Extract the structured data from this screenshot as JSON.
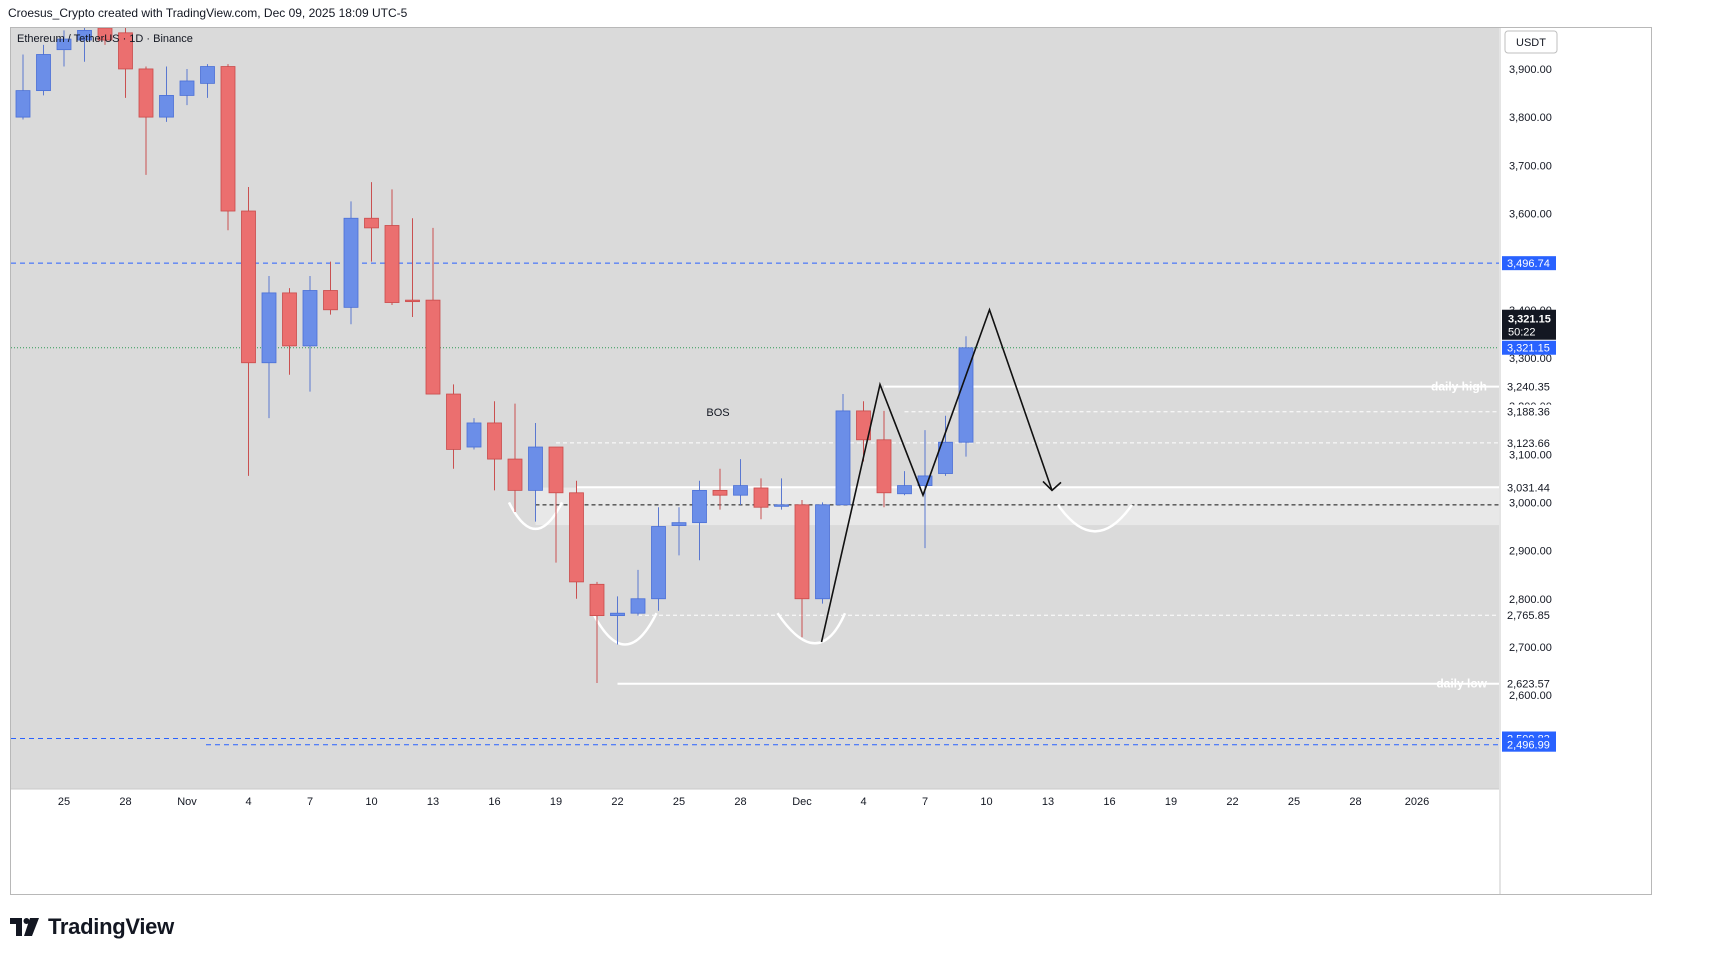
{
  "header": {
    "credit": "Croesus_Crypto created with TradingView.com, Dec 09, 2025 18:09 UTC-5"
  },
  "chart_data": {
    "type": "candlestick",
    "title": "Ethereum / TetherUS · 1D · Binance",
    "currency": "USDT",
    "ylim": [
      2405,
      3985
    ],
    "y_ticks": [
      2600,
      2700,
      2800,
      2900,
      3000,
      3100,
      3200,
      3300,
      3400,
      3600,
      3700,
      3800,
      3900
    ],
    "x_ticks": [
      "25",
      "28",
      "Nov",
      "4",
      "7",
      "10",
      "13",
      "16",
      "19",
      "22",
      "25",
      "28",
      "Dec",
      "4",
      "7",
      "10",
      "13",
      "16",
      "19",
      "22",
      "25",
      "28",
      "2026"
    ],
    "candles": [
      {
        "o": 3800,
        "h": 3930,
        "l": 3795,
        "c": 3855
      },
      {
        "o": 3855,
        "h": 3950,
        "l": 3845,
        "c": 3930
      },
      {
        "o": 3940,
        "h": 3980,
        "l": 3905,
        "c": 3962
      },
      {
        "o": 3960,
        "h": 3990,
        "l": 3915,
        "c": 3980
      },
      {
        "o": 3985,
        "h": 3990,
        "l": 3950,
        "c": 3960
      },
      {
        "o": 3975,
        "h": 3990,
        "l": 3840,
        "c": 3900
      },
      {
        "o": 3900,
        "h": 3905,
        "l": 3680,
        "c": 3800
      },
      {
        "o": 3800,
        "h": 3905,
        "l": 3790,
        "c": 3845
      },
      {
        "o": 3845,
        "h": 3900,
        "l": 3825,
        "c": 3875
      },
      {
        "o": 3870,
        "h": 3910,
        "l": 3840,
        "c": 3905
      },
      {
        "o": 3905,
        "h": 3910,
        "l": 3565,
        "c": 3605
      },
      {
        "o": 3605,
        "h": 3655,
        "l": 3055,
        "c": 3290
      },
      {
        "o": 3290,
        "h": 3470,
        "l": 3175,
        "c": 3435
      },
      {
        "o": 3435,
        "h": 3445,
        "l": 3265,
        "c": 3325
      },
      {
        "o": 3325,
        "h": 3470,
        "l": 3230,
        "c": 3440
      },
      {
        "o": 3440,
        "h": 3500,
        "l": 3390,
        "c": 3400
      },
      {
        "o": 3405,
        "h": 3625,
        "l": 3370,
        "c": 3590
      },
      {
        "o": 3590,
        "h": 3665,
        "l": 3500,
        "c": 3570
      },
      {
        "o": 3575,
        "h": 3650,
        "l": 3410,
        "c": 3415
      },
      {
        "o": 3420,
        "h": 3590,
        "l": 3385,
        "c": 3418
      },
      {
        "o": 3420,
        "h": 3570,
        "l": 3230,
        "c": 3225
      },
      {
        "o": 3225,
        "h": 3245,
        "l": 3070,
        "c": 3110
      },
      {
        "o": 3115,
        "h": 3175,
        "l": 3110,
        "c": 3165
      },
      {
        "o": 3165,
        "h": 3210,
        "l": 3025,
        "c": 3090
      },
      {
        "o": 3090,
        "h": 3205,
        "l": 2980,
        "c": 3025
      },
      {
        "o": 3025,
        "h": 3165,
        "l": 2960,
        "c": 3115
      },
      {
        "o": 3115,
        "h": 3115,
        "l": 2875,
        "c": 3020
      },
      {
        "o": 3020,
        "h": 3045,
        "l": 2800,
        "c": 2835
      },
      {
        "o": 2830,
        "h": 2835,
        "l": 2625,
        "c": 2765
      },
      {
        "o": 2765,
        "h": 2805,
        "l": 2705,
        "c": 2770
      },
      {
        "o": 2770,
        "h": 2860,
        "l": 2765,
        "c": 2800
      },
      {
        "o": 2800,
        "h": 2990,
        "l": 2775,
        "c": 2950
      },
      {
        "o": 2952,
        "h": 2990,
        "l": 2890,
        "c": 2958
      },
      {
        "o": 2958,
        "h": 3045,
        "l": 2880,
        "c": 3025
      },
      {
        "o": 3025,
        "h": 3070,
        "l": 2985,
        "c": 3015
      },
      {
        "o": 3015,
        "h": 3090,
        "l": 2995,
        "c": 3035
      },
      {
        "o": 3030,
        "h": 3050,
        "l": 2965,
        "c": 2990
      },
      {
        "o": 2992,
        "h": 3050,
        "l": 2985,
        "c": 2995
      },
      {
        "o": 2995,
        "h": 3005,
        "l": 2720,
        "c": 2800
      },
      {
        "o": 2800,
        "h": 3000,
        "l": 2790,
        "c": 2995
      },
      {
        "o": 2995,
        "h": 3225,
        "l": 2995,
        "c": 3190
      },
      {
        "o": 3190,
        "h": 3210,
        "l": 3085,
        "c": 3130
      },
      {
        "o": 3130,
        "h": 3190,
        "l": 2990,
        "c": 3020
      },
      {
        "o": 3018,
        "h": 3065,
        "l": 3015,
        "c": 3035
      },
      {
        "o": 3035,
        "h": 3150,
        "l": 2905,
        "c": 3055
      },
      {
        "o": 3060,
        "h": 3180,
        "l": 3055,
        "c": 3125
      },
      {
        "o": 3125,
        "h": 3345,
        "l": 3095,
        "c": 3321
      }
    ],
    "levels": [
      {
        "label": "3,496.74",
        "value": 3496.74,
        "style": "blue-dashed"
      },
      {
        "label": "3,321.15",
        "value": 3321.15,
        "style": "green-dotted"
      },
      {
        "label": "3,240.35",
        "value": 3240.35,
        "style": "white-solid",
        "text": "daily high"
      },
      {
        "label": "3,188.36",
        "value": 3188.36,
        "style": "white-dashed"
      },
      {
        "label": "3,123.66",
        "value": 3123.66,
        "style": "white-dashed"
      },
      {
        "label": "3,031.44",
        "value": 3031.44,
        "style": "white-solid"
      },
      {
        "label": "2,765.85",
        "value": 2765.85,
        "style": "white-dashed"
      },
      {
        "label": "2,623.57",
        "value": 2623.57,
        "style": "white-solid",
        "text": "daily low"
      },
      {
        "label": "2,509.83",
        "value": 2509.83,
        "style": "blue-dashed"
      },
      {
        "label": "2,496.99",
        "value": 2496.99,
        "style": "blue-dashed"
      }
    ],
    "dashed_black_level": 2995,
    "zone": [
      2953,
      3031
    ],
    "annotations": [
      "BOS"
    ],
    "current_price": "3,321.15",
    "countdown": "50:22",
    "colors": {
      "up": "#6b8ee8",
      "down": "#eb6f6f",
      "background": "#dadada",
      "blue_level": "#2962ff",
      "wick": "#5a78d0"
    }
  },
  "brand": {
    "name": "TradingView"
  }
}
